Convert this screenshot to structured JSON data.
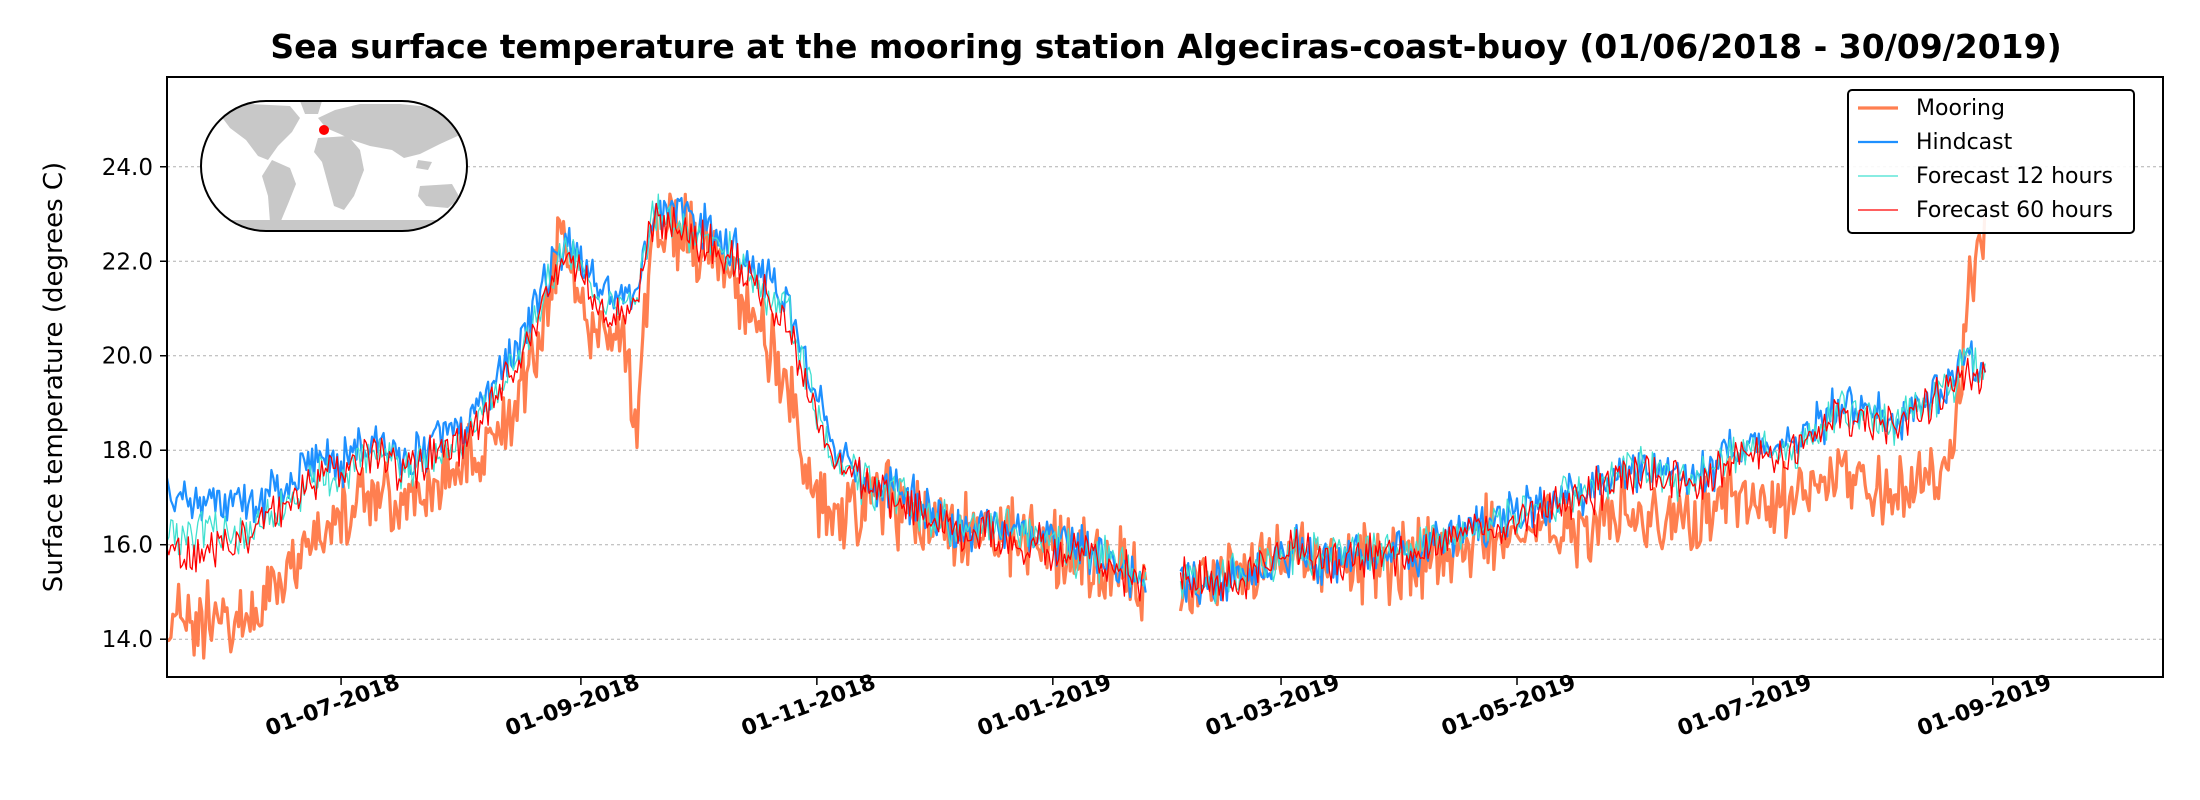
{
  "chart_data": {
    "type": "line",
    "title": "Sea surface temperature at the mooring station Algeciras-coast-buoy (01/06/2018 - 30/09/2019)",
    "xlabel": "",
    "ylabel": "Surface temperature (degrees C)",
    "xlim": [
      "2018-05-17",
      "2019-10-15"
    ],
    "ylim": [
      13.2,
      25.9
    ],
    "yticks": [
      14.0,
      16.0,
      18.0,
      20.0,
      22.0,
      24.0
    ],
    "ytick_labels": [
      "14.0",
      "16.0",
      "18.0",
      "20.0",
      "22.0",
      "24.0"
    ],
    "xticks": [
      "2018-07-01",
      "2018-09-01",
      "2018-11-01",
      "2019-01-01",
      "2019-03-01",
      "2019-05-01",
      "2019-07-01",
      "2019-09-01"
    ],
    "xtick_labels": [
      "01-07-2018",
      "01-09-2018",
      "01-11-2018",
      "01-01-2019",
      "01-03-2019",
      "01-05-2019",
      "01-07-2019",
      "01-09-2019"
    ],
    "grid": "horizontal dotted",
    "legend_position": "top-right",
    "inset": "world map with station location marker",
    "gaps": [
      [
        "2019-01-25",
        "2019-02-03"
      ]
    ],
    "series": [
      {
        "name": "Mooring",
        "color": "#ff7f50",
        "style": "thick",
        "points": [
          [
            "2018-05-17",
            14.6
          ],
          [
            "2018-05-25",
            14.4
          ],
          [
            "2018-06-02",
            14.3
          ],
          [
            "2018-06-10",
            14.8
          ],
          [
            "2018-06-18",
            15.5
          ],
          [
            "2018-06-25",
            16.3
          ],
          [
            "2018-07-02",
            16.8
          ],
          [
            "2018-07-10",
            17.0
          ],
          [
            "2018-07-18",
            16.8
          ],
          [
            "2018-07-26",
            17.3
          ],
          [
            "2018-08-03",
            17.7
          ],
          [
            "2018-08-10",
            18.3
          ],
          [
            "2018-08-17",
            19.3
          ],
          [
            "2018-08-24",
            21.2
          ],
          [
            "2018-08-28",
            23.0
          ],
          [
            "2018-09-01",
            21.0
          ],
          [
            "2018-09-06",
            20.2
          ],
          [
            "2018-09-12",
            20.6
          ],
          [
            "2018-09-15",
            18.5
          ],
          [
            "2018-09-20",
            23.0
          ],
          [
            "2018-09-26",
            22.6
          ],
          [
            "2018-10-03",
            22.3
          ],
          [
            "2018-10-10",
            21.6
          ],
          [
            "2018-10-17",
            20.6
          ],
          [
            "2018-10-24",
            19.6
          ],
          [
            "2018-10-30",
            17.2
          ],
          [
            "2018-11-05",
            16.5
          ],
          [
            "2018-11-12",
            16.7
          ],
          [
            "2018-11-18",
            17.0
          ],
          [
            "2018-11-25",
            16.7
          ],
          [
            "2018-12-02",
            16.3
          ],
          [
            "2018-12-10",
            16.2
          ],
          [
            "2018-12-18",
            16.3
          ],
          [
            "2018-12-26",
            16.1
          ],
          [
            "2019-01-03",
            15.9
          ],
          [
            "2019-01-10",
            15.7
          ],
          [
            "2019-01-18",
            15.5
          ],
          [
            "2019-01-25",
            15.2
          ],
          null,
          [
            "2019-02-03",
            15.0
          ],
          [
            "2019-02-10",
            15.2
          ],
          [
            "2019-02-18",
            15.5
          ],
          [
            "2019-02-25",
            15.6
          ],
          [
            "2019-03-05",
            15.8
          ],
          [
            "2019-03-12",
            15.6
          ],
          [
            "2019-03-20",
            15.7
          ],
          [
            "2019-03-28",
            15.5
          ],
          [
            "2019-04-04",
            15.7
          ],
          [
            "2019-04-12",
            15.9
          ],
          [
            "2019-04-20",
            16.1
          ],
          [
            "2019-04-28",
            16.2
          ],
          [
            "2019-05-06",
            16.2
          ],
          [
            "2019-05-14",
            16.3
          ],
          [
            "2019-05-22",
            16.5
          ],
          [
            "2019-05-30",
            16.9
          ],
          [
            "2019-06-06",
            16.6
          ],
          [
            "2019-06-14",
            16.5
          ],
          [
            "2019-06-22",
            16.8
          ],
          [
            "2019-06-30",
            17.0
          ],
          [
            "2019-07-08",
            16.8
          ],
          [
            "2019-07-16",
            17.3
          ],
          [
            "2019-07-24",
            17.5
          ],
          [
            "2019-08-01",
            17.3
          ],
          [
            "2019-08-08",
            17.0
          ],
          [
            "2019-08-15",
            17.5
          ],
          [
            "2019-08-22",
            17.8
          ],
          [
            "2019-08-26",
            21.5
          ],
          [
            "2019-08-30",
            22.5
          ]
        ]
      },
      {
        "name": "Hindcast",
        "color": "#1e90ff",
        "style": "medium",
        "points": [
          [
            "2018-05-17",
            16.9
          ],
          [
            "2018-05-25",
            17.0
          ],
          [
            "2018-06-02",
            16.9
          ],
          [
            "2018-06-10",
            17.0
          ],
          [
            "2018-06-18",
            17.4
          ],
          [
            "2018-06-25",
            17.8
          ],
          [
            "2018-07-02",
            17.8
          ],
          [
            "2018-07-10",
            18.3
          ],
          [
            "2018-07-18",
            17.8
          ],
          [
            "2018-07-26",
            18.2
          ],
          [
            "2018-08-03",
            18.6
          ],
          [
            "2018-08-10",
            19.6
          ],
          [
            "2018-08-17",
            20.4
          ],
          [
            "2018-08-24",
            21.8
          ],
          [
            "2018-08-28",
            22.4
          ],
          [
            "2018-09-01",
            22.0
          ],
          [
            "2018-09-06",
            21.5
          ],
          [
            "2018-09-12",
            21.2
          ],
          [
            "2018-09-15",
            21.4
          ],
          [
            "2018-09-20",
            23.1
          ],
          [
            "2018-09-26",
            23.0
          ],
          [
            "2018-10-03",
            22.7
          ],
          [
            "2018-10-10",
            22.3
          ],
          [
            "2018-10-17",
            21.8
          ],
          [
            "2018-10-24",
            21.3
          ],
          [
            "2018-10-30",
            19.8
          ],
          [
            "2018-11-05",
            18.0
          ],
          [
            "2018-11-12",
            17.4
          ],
          [
            "2018-11-18",
            17.2
          ],
          [
            "2018-11-25",
            17.0
          ],
          [
            "2018-12-02",
            16.6
          ],
          [
            "2018-12-10",
            16.3
          ],
          [
            "2018-12-18",
            16.4
          ],
          [
            "2018-12-26",
            16.2
          ],
          [
            "2019-01-03",
            16.0
          ],
          [
            "2019-01-10",
            15.9
          ],
          [
            "2019-01-18",
            15.6
          ],
          [
            "2019-01-25",
            15.1
          ],
          null,
          [
            "2019-02-03",
            15.3
          ],
          [
            "2019-02-10",
            15.1
          ],
          [
            "2019-02-18",
            15.3
          ],
          [
            "2019-02-25",
            15.5
          ],
          [
            "2019-03-05",
            15.9
          ],
          [
            "2019-03-12",
            15.6
          ],
          [
            "2019-03-20",
            15.9
          ],
          [
            "2019-03-28",
            15.8
          ],
          [
            "2019-04-04",
            15.8
          ],
          [
            "2019-04-12",
            16.1
          ],
          [
            "2019-04-20",
            16.4
          ],
          [
            "2019-04-28",
            16.5
          ],
          [
            "2019-05-06",
            16.8
          ],
          [
            "2019-05-14",
            17.0
          ],
          [
            "2019-05-22",
            17.2
          ],
          [
            "2019-05-30",
            17.7
          ],
          [
            "2019-06-06",
            17.5
          ],
          [
            "2019-06-14",
            17.4
          ],
          [
            "2019-06-22",
            17.7
          ],
          [
            "2019-06-30",
            18.2
          ],
          [
            "2019-07-08",
            18.0
          ],
          [
            "2019-07-16",
            18.4
          ],
          [
            "2019-07-24",
            19.0
          ],
          [
            "2019-08-01",
            18.8
          ],
          [
            "2019-08-08",
            18.6
          ],
          [
            "2019-08-15",
            19.1
          ],
          [
            "2019-08-22",
            19.6
          ],
          [
            "2019-08-26",
            20.0
          ],
          [
            "2019-08-30",
            19.6
          ]
        ]
      },
      {
        "name": "Forecast 12 hours",
        "color": "#40e0d0",
        "style": "thin",
        "points": [
          [
            "2018-05-17",
            16.2
          ],
          [
            "2018-05-25",
            16.3
          ],
          [
            "2018-06-02",
            16.2
          ],
          [
            "2018-06-10",
            16.4
          ],
          [
            "2018-06-18",
            16.9
          ],
          [
            "2018-06-25",
            17.5
          ],
          [
            "2018-07-02",
            17.6
          ],
          [
            "2018-07-10",
            18.1
          ],
          [
            "2018-07-18",
            17.6
          ],
          [
            "2018-07-26",
            18.0
          ],
          [
            "2018-08-03",
            18.4
          ],
          [
            "2018-08-10",
            19.3
          ],
          [
            "2018-08-17",
            20.1
          ],
          [
            "2018-08-24",
            21.6
          ],
          [
            "2018-08-28",
            22.2
          ],
          [
            "2018-09-01",
            21.8
          ],
          [
            "2018-09-06",
            21.2
          ],
          [
            "2018-09-12",
            21.0
          ],
          [
            "2018-09-15",
            21.1
          ],
          [
            "2018-09-20",
            23.0
          ],
          [
            "2018-09-26",
            22.8
          ],
          [
            "2018-10-03",
            22.5
          ],
          [
            "2018-10-10",
            22.1
          ],
          [
            "2018-10-17",
            21.5
          ],
          [
            "2018-10-24",
            21.0
          ],
          [
            "2018-10-30",
            19.4
          ],
          [
            "2018-11-05",
            17.8
          ],
          [
            "2018-11-12",
            17.3
          ],
          [
            "2018-11-18",
            17.2
          ],
          [
            "2018-11-25",
            16.9
          ],
          [
            "2018-12-02",
            16.5
          ],
          [
            "2018-12-10",
            16.3
          ],
          [
            "2018-12-18",
            16.4
          ],
          [
            "2018-12-26",
            16.1
          ],
          [
            "2019-01-03",
            15.9
          ],
          [
            "2019-01-10",
            15.8
          ],
          [
            "2019-01-18",
            15.6
          ],
          [
            "2019-01-25",
            15.2
          ],
          null,
          [
            "2019-02-03",
            15.3
          ],
          [
            "2019-02-10",
            15.2
          ],
          [
            "2019-02-18",
            15.3
          ],
          [
            "2019-02-25",
            15.6
          ],
          [
            "2019-03-05",
            15.9
          ],
          [
            "2019-03-12",
            15.7
          ],
          [
            "2019-03-20",
            15.9
          ],
          [
            "2019-03-28",
            15.8
          ],
          [
            "2019-04-04",
            15.9
          ],
          [
            "2019-04-12",
            16.1
          ],
          [
            "2019-04-20",
            16.3
          ],
          [
            "2019-04-28",
            16.5
          ],
          [
            "2019-05-06",
            16.8
          ],
          [
            "2019-05-14",
            17.0
          ],
          [
            "2019-05-22",
            17.2
          ],
          [
            "2019-05-30",
            17.7
          ],
          [
            "2019-06-06",
            17.5
          ],
          [
            "2019-06-14",
            17.3
          ],
          [
            "2019-06-22",
            17.6
          ],
          [
            "2019-06-30",
            18.1
          ],
          [
            "2019-07-08",
            17.9
          ],
          [
            "2019-07-16",
            18.3
          ],
          [
            "2019-07-24",
            18.9
          ],
          [
            "2019-08-01",
            18.7
          ],
          [
            "2019-08-08",
            18.6
          ],
          [
            "2019-08-15",
            19.0
          ],
          [
            "2019-08-22",
            19.5
          ],
          [
            "2019-08-26",
            19.9
          ],
          [
            "2019-08-30",
            19.5
          ]
        ]
      },
      {
        "name": "Forecast 60 hours",
        "color": "#ff0000",
        "style": "thin",
        "points": [
          [
            "2018-05-17",
            15.9
          ],
          [
            "2018-05-25",
            15.8
          ],
          [
            "2018-06-02",
            16.0
          ],
          [
            "2018-06-10",
            16.3
          ],
          [
            "2018-06-18",
            16.8
          ],
          [
            "2018-06-25",
            17.4
          ],
          [
            "2018-07-02",
            17.5
          ],
          [
            "2018-07-10",
            18.0
          ],
          [
            "2018-07-18",
            17.5
          ],
          [
            "2018-07-26",
            17.9
          ],
          [
            "2018-08-03",
            18.3
          ],
          [
            "2018-08-10",
            19.2
          ],
          [
            "2018-08-17",
            20.0
          ],
          [
            "2018-08-24",
            21.5
          ],
          [
            "2018-08-28",
            22.1
          ],
          [
            "2018-09-01",
            21.7
          ],
          [
            "2018-09-06",
            21.1
          ],
          [
            "2018-09-12",
            20.8
          ],
          [
            "2018-09-15",
            21.0
          ],
          [
            "2018-09-20",
            22.9
          ],
          [
            "2018-09-26",
            22.7
          ],
          [
            "2018-10-03",
            22.4
          ],
          [
            "2018-10-10",
            22.0
          ],
          [
            "2018-10-17",
            21.4
          ],
          [
            "2018-10-24",
            20.8
          ],
          [
            "2018-10-30",
            19.2
          ],
          [
            "2018-11-05",
            17.9
          ],
          [
            "2018-11-12",
            17.4
          ],
          [
            "2018-11-18",
            17.1
          ],
          [
            "2018-11-25",
            16.8
          ],
          [
            "2018-12-02",
            16.5
          ],
          [
            "2018-12-10",
            16.2
          ],
          [
            "2018-12-18",
            16.3
          ],
          [
            "2018-12-26",
            16.0
          ],
          [
            "2019-01-03",
            15.8
          ],
          [
            "2019-01-10",
            15.9
          ],
          [
            "2019-01-18",
            15.5
          ],
          [
            "2019-01-25",
            15.2
          ],
          null,
          [
            "2019-02-03",
            15.4
          ],
          [
            "2019-02-10",
            15.3
          ],
          [
            "2019-02-18",
            15.2
          ],
          [
            "2019-02-25",
            15.6
          ],
          [
            "2019-03-05",
            15.9
          ],
          [
            "2019-03-12",
            15.6
          ],
          [
            "2019-03-20",
            15.8
          ],
          [
            "2019-03-28",
            15.8
          ],
          [
            "2019-04-04",
            15.7
          ],
          [
            "2019-04-12",
            16.0
          ],
          [
            "2019-04-20",
            16.3
          ],
          [
            "2019-04-28",
            16.5
          ],
          [
            "2019-05-06",
            16.7
          ],
          [
            "2019-05-14",
            17.0
          ],
          [
            "2019-05-22",
            17.2
          ],
          [
            "2019-05-30",
            17.6
          ],
          [
            "2019-06-06",
            17.4
          ],
          [
            "2019-06-14",
            17.3
          ],
          [
            "2019-06-22",
            17.6
          ],
          [
            "2019-06-30",
            18.0
          ],
          [
            "2019-07-08",
            17.8
          ],
          [
            "2019-07-16",
            18.2
          ],
          [
            "2019-07-24",
            18.8
          ],
          [
            "2019-08-01",
            18.6
          ],
          [
            "2019-08-08",
            18.5
          ],
          [
            "2019-08-15",
            18.9
          ],
          [
            "2019-08-22",
            19.4
          ],
          [
            "2019-08-26",
            19.8
          ],
          [
            "2019-08-30",
            19.4
          ]
        ]
      }
    ]
  }
}
